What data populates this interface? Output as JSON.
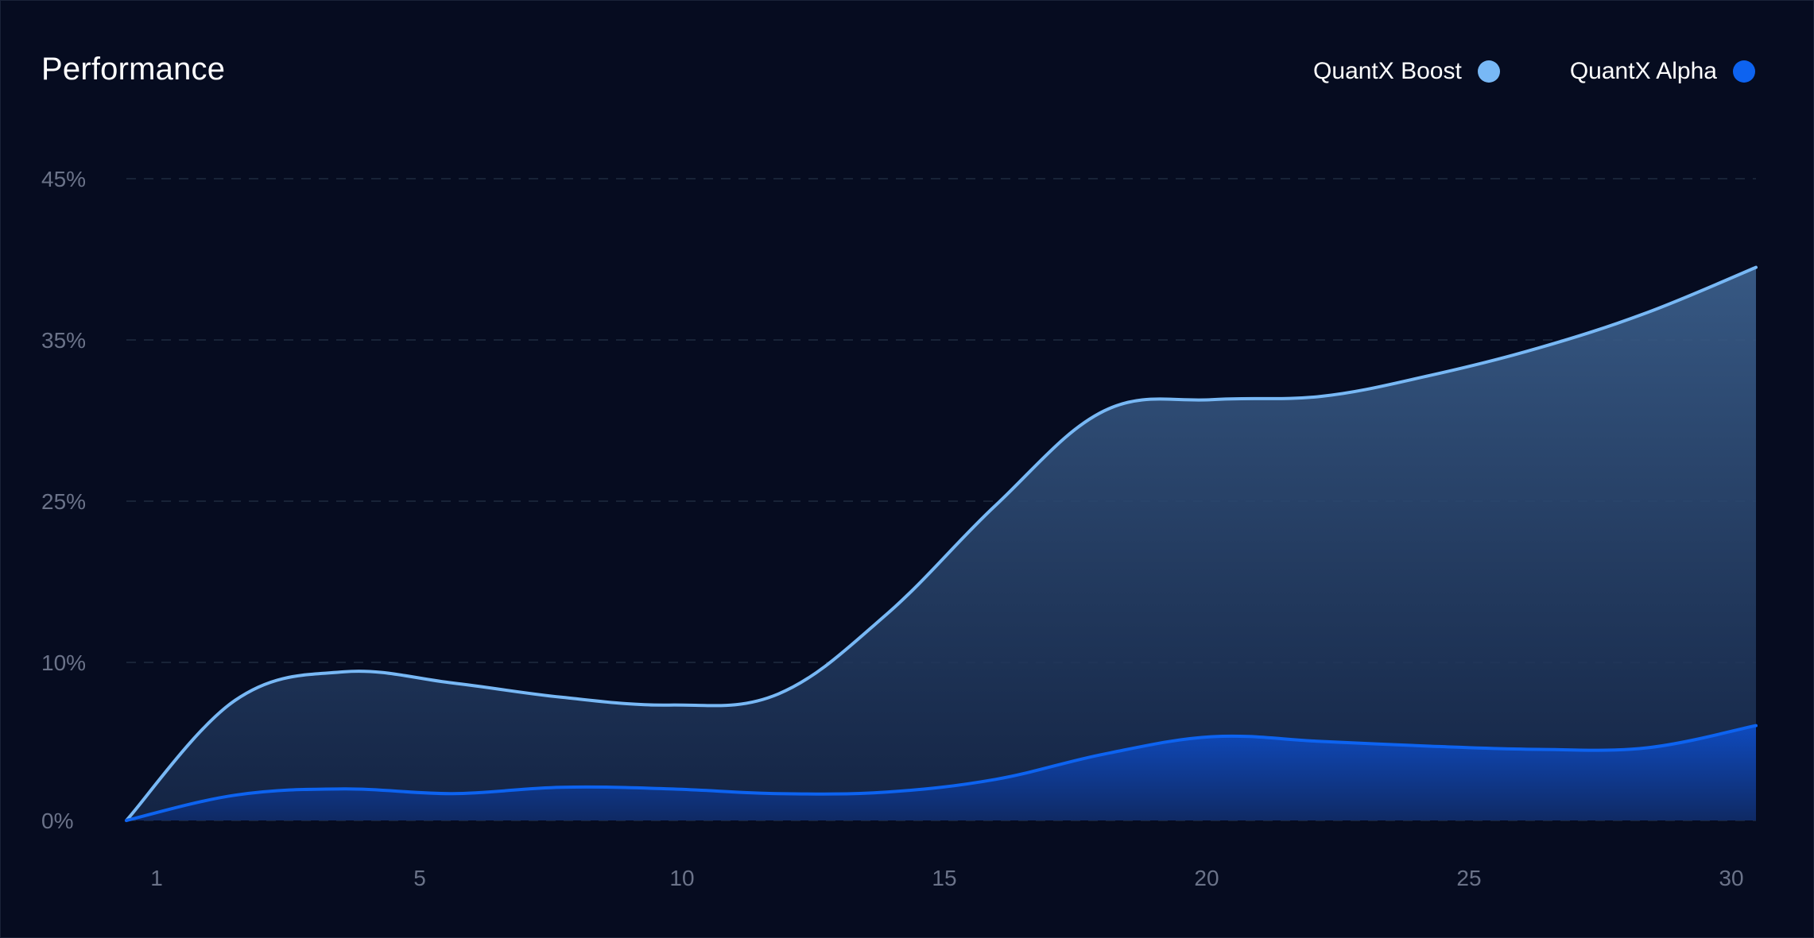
{
  "chart_data": {
    "type": "area",
    "title": "Performance",
    "xlabel": "",
    "ylabel": "",
    "x_ticks": [
      "1",
      "5",
      "10",
      "15",
      "20",
      "25",
      "30"
    ],
    "y_ticks": [
      "0%",
      "10%",
      "25%",
      "35%",
      "45%"
    ],
    "y_tick_values": [
      0,
      10,
      25,
      35,
      45
    ],
    "x": [
      1,
      3,
      5,
      7,
      9,
      11,
      13,
      15,
      17,
      19,
      21,
      23,
      25,
      27,
      29,
      31
    ],
    "ylim": [
      0,
      45
    ],
    "grid": true,
    "legend_position": "top-right",
    "series": [
      {
        "name": "QuantX Boost",
        "color": "#78b8f5",
        "values": [
          0,
          7.6,
          9.4,
          8.7,
          7.8,
          7.3,
          8.0,
          14.5,
          24.6,
          30.6,
          31.3,
          31.5,
          32.8,
          34.5,
          36.7,
          39.5
        ]
      },
      {
        "name": "QuantX Alpha",
        "color": "#0d63f0",
        "values": [
          0,
          1.6,
          2.0,
          1.7,
          2.1,
          2.0,
          1.7,
          1.8,
          2.6,
          4.2,
          5.3,
          5.0,
          4.7,
          4.5,
          4.6,
          6.0
        ]
      }
    ]
  }
}
